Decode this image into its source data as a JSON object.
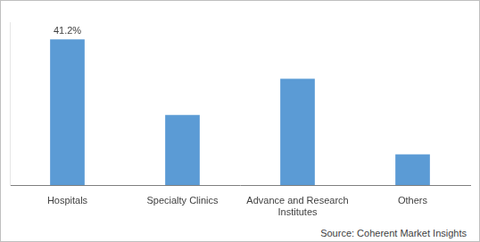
{
  "chart_data": {
    "type": "bar",
    "categories": [
      "Hospitals",
      "Specialty Clinics",
      "Advance and Research Institutes",
      "Others"
    ],
    "values": [
      41.2,
      19.9,
      30.1,
      8.8
    ],
    "value_labels": [
      "41.2%",
      null,
      null,
      null
    ],
    "color": "#5b9bd5",
    "ylim": [
      0,
      46
    ],
    "grid": false,
    "tick_labels": "x",
    "source": "Source: Coherent Market Insights"
  }
}
